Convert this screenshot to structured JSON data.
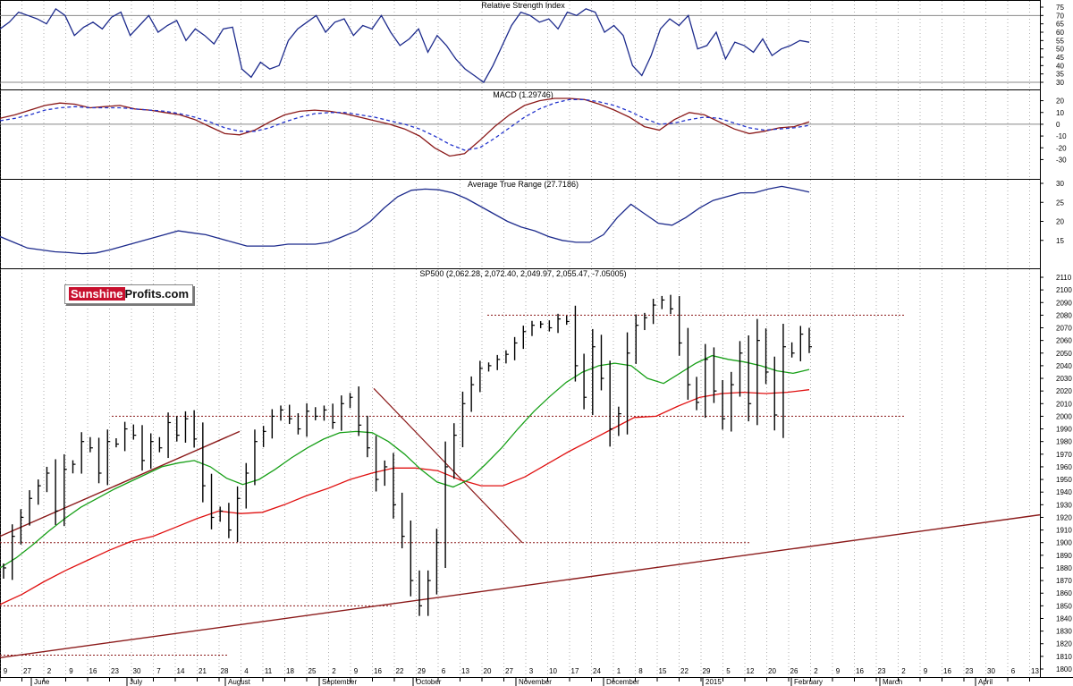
{
  "logo": {
    "part1": "Sunshine",
    "part2": "Profits.com"
  },
  "chart_data": [
    {
      "type": "line",
      "title": "Relative Strength Index",
      "ylim": [
        30,
        75
      ],
      "yticks": [
        30,
        35,
        40,
        45,
        50,
        55,
        60,
        65,
        70,
        75
      ],
      "reference_lines": [
        30,
        70
      ],
      "series": [
        {
          "values": [
            62,
            66,
            72,
            70,
            68,
            65,
            74,
            70,
            58,
            63,
            66,
            62,
            69,
            72,
            58,
            64,
            70,
            60,
            64,
            67,
            55,
            62,
            58,
            53,
            62,
            63,
            38,
            33,
            42,
            38,
            40,
            55,
            62,
            66,
            70,
            60,
            66,
            68,
            58,
            64,
            62,
            70,
            60,
            52,
            56,
            62,
            48,
            58,
            52,
            44,
            38,
            34,
            30,
            40,
            52,
            64,
            72,
            70,
            66,
            68,
            62,
            72,
            70,
            74,
            72,
            60,
            64,
            58,
            40,
            34,
            46,
            62,
            68,
            64,
            70,
            50,
            52,
            60,
            44,
            54,
            52,
            48,
            56,
            46,
            50,
            52,
            55,
            54
          ]
        }
      ]
    },
    {
      "type": "line",
      "title": "MACD (1.29746)",
      "ylim": [
        -35,
        25
      ],
      "yticks": [
        -30,
        -20,
        -10,
        0,
        10,
        20
      ],
      "reference_lines": [
        0
      ],
      "series": [
        {
          "values": [
            5,
            8,
            12,
            16,
            18,
            17,
            14,
            15,
            16,
            13,
            12,
            10,
            8,
            4,
            -2,
            -8,
            -9,
            -5,
            2,
            8,
            11,
            12,
            11,
            9,
            6,
            3,
            0,
            -4,
            -10,
            -20,
            -27,
            -25,
            -14,
            -2,
            8,
            16,
            20,
            22,
            22,
            21,
            17,
            12,
            6,
            -2,
            -5,
            4,
            10,
            8,
            2,
            -4,
            -8,
            -6,
            -3,
            -2,
            2
          ]
        },
        {
          "values": [
            3,
            5,
            8,
            12,
            14,
            15,
            14,
            14,
            14,
            13,
            12,
            11,
            9,
            6,
            2,
            -3,
            -6,
            -6,
            -3,
            2,
            6,
            9,
            10,
            10,
            8,
            6,
            3,
            0,
            -4,
            -10,
            -17,
            -22,
            -20,
            -12,
            -3,
            6,
            13,
            18,
            21,
            21,
            19,
            16,
            11,
            5,
            0,
            1,
            4,
            6,
            5,
            1,
            -3,
            -5,
            -4,
            -3,
            -1
          ]
        }
      ]
    },
    {
      "type": "line",
      "title": "Average True Range (27.7186)",
      "ylim": [
        10,
        30
      ],
      "yticks": [
        15,
        20,
        25,
        30
      ],
      "series": [
        {
          "values": [
            16,
            14.5,
            13,
            12.5,
            12,
            11.8,
            11.5,
            11.7,
            12.5,
            13.5,
            14.5,
            15.5,
            16.5,
            17.5,
            17,
            16.5,
            15.5,
            14.5,
            13.5,
            13.5,
            13.5,
            14,
            14,
            14,
            14.5,
            16,
            17.5,
            20,
            23.5,
            26.5,
            28.2,
            28.5,
            28.3,
            27.5,
            26,
            24,
            22,
            20,
            18.5,
            17.5,
            16,
            15,
            14.5,
            14.5,
            16.5,
            21,
            24.5,
            22,
            19.5,
            19,
            21,
            23.5,
            25.5,
            26.5,
            27.5,
            27.5,
            28.5,
            29.2,
            28.5,
            27.7
          ]
        }
      ]
    },
    {
      "type": "bar",
      "title": "SP500 (2,062.28, 2,072.40, 2,049.97, 2,055.47, -7.05005)",
      "ylim": [
        1800,
        2110
      ],
      "yticks": [
        1800,
        1810,
        1820,
        1830,
        1840,
        1850,
        1860,
        1870,
        1880,
        1890,
        1900,
        1910,
        1920,
        1930,
        1940,
        1950,
        1960,
        1970,
        1980,
        1990,
        2000,
        2010,
        2020,
        2030,
        2040,
        2050,
        2060,
        2070,
        2080,
        2090,
        2100,
        2110
      ],
      "x_ticks": [
        "9",
        "27",
        "2",
        "9",
        "16",
        "23",
        "30",
        "7",
        "14",
        "21",
        "28",
        "4",
        "11",
        "18",
        "25",
        "2",
        "9",
        "16",
        "22",
        "29",
        "6",
        "13",
        "20",
        "27",
        "3",
        "10",
        "17",
        "24",
        "1",
        "8",
        "15",
        "22",
        "29",
        "5",
        "12",
        "20",
        "26",
        "2",
        "9",
        "16",
        "23",
        "2",
        "9",
        "16",
        "23",
        "30",
        "6",
        "13"
      ],
      "month_labels": [
        "June",
        "July",
        "August",
        "September",
        "October",
        "November",
        "December",
        "2015",
        "February",
        "March",
        "April"
      ],
      "close": [
        1880,
        1905,
        1920,
        1935,
        1945,
        1955,
        1925,
        1958,
        1962,
        1980,
        1975,
        1955,
        1980,
        1978,
        1990,
        1985,
        1965,
        1980,
        1975,
        1995,
        1985,
        1998,
        1982,
        1945,
        1920,
        1925,
        1910,
        1935,
        1955,
        1980,
        1988,
        2000,
        2005,
        1998,
        1990,
        2004,
        2000,
        2005,
        1995,
        2010,
        2015,
        1993,
        1975,
        1950,
        1960,
        1930,
        1905,
        1870,
        1850,
        1870,
        1900,
        1960,
        1985,
        2010,
        2025,
        2038,
        2040,
        2045,
        2049,
        2058,
        2067,
        2072,
        2073,
        2070,
        2077,
        2075,
        2040,
        2015,
        2055,
        2030,
        1990,
        2002,
        2050,
        2072,
        2078,
        2088,
        2092,
        2085,
        2058,
        2025,
        2011,
        2045,
        2020,
        1998,
        2025,
        2050,
        2010,
        2060,
        2035,
        2001,
        2055,
        2050,
        2065,
        2055
      ],
      "ma50": [
        1880,
        1888,
        1898,
        1909,
        1919,
        1928,
        1935,
        1942,
        1948,
        1954,
        1960,
        1963,
        1965,
        1960,
        1951,
        1946,
        1950,
        1958,
        1967,
        1975,
        1982,
        1987,
        1988,
        1987,
        1980,
        1970,
        1958,
        1948,
        1944,
        1950,
        1962,
        1975,
        1990,
        2004,
        2016,
        2027,
        2035,
        2040,
        2042,
        2040,
        2030,
        2026,
        2034,
        2042,
        2048,
        2045,
        2043,
        2040,
        2036,
        2034,
        2037
      ],
      "ma200": [
        1851,
        1859,
        1869,
        1878,
        1886,
        1894,
        1901,
        1905,
        1912,
        1919,
        1925,
        1923,
        1924,
        1930,
        1937,
        1943,
        1950,
        1955,
        1959,
        1959,
        1957,
        1950,
        1945,
        1945,
        1952,
        1962,
        1972,
        1981,
        1990,
        1999,
        2000,
        2008,
        2015,
        2018,
        2019,
        2018,
        2019,
        2021
      ]
    }
  ]
}
